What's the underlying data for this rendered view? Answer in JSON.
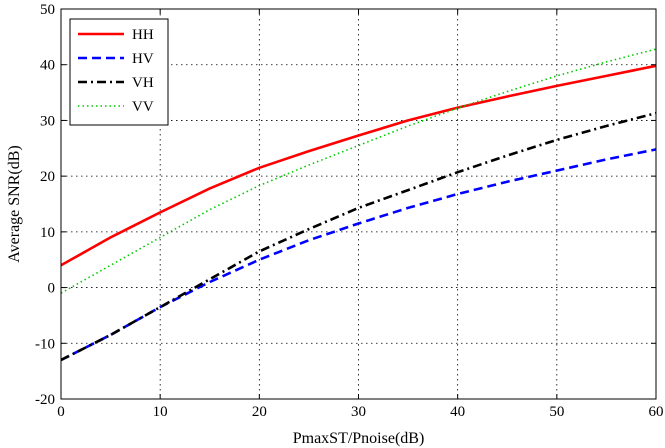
{
  "chart_data": {
    "type": "line",
    "title": "",
    "xlabel": "PmaxST/Pnoise(dB)",
    "ylabel": "Average SNR(dB)",
    "xlim": [
      0,
      60
    ],
    "ylim": [
      -20,
      50
    ],
    "xticks": [
      0,
      10,
      20,
      30,
      40,
      50,
      60
    ],
    "yticks": [
      -20,
      -10,
      0,
      10,
      20,
      30,
      40,
      50
    ],
    "grid": true,
    "legend_position": "top-left",
    "series": [
      {
        "name": "HH",
        "color": "#ff0000",
        "style": "solid",
        "x": [
          0,
          5,
          10,
          15,
          20,
          25,
          30,
          35,
          40,
          45,
          50,
          55,
          60
        ],
        "y": [
          4,
          9,
          13.5,
          17.8,
          21.5,
          24.5,
          27.3,
          30,
          32.3,
          34.3,
          36.2,
          38,
          39.8
        ]
      },
      {
        "name": "HV",
        "color": "#0000ff",
        "style": "dashed",
        "x": [
          0,
          5,
          10,
          15,
          20,
          25,
          30,
          35,
          40,
          45,
          50,
          55,
          60
        ],
        "y": [
          -13,
          -8.5,
          -3.5,
          1,
          5,
          8.5,
          11.5,
          14.3,
          16.8,
          19,
          21,
          23,
          24.8
        ]
      },
      {
        "name": "VH",
        "color": "#000000",
        "style": "dashdot",
        "x": [
          0,
          5,
          10,
          15,
          20,
          25,
          30,
          35,
          40,
          45,
          50,
          55,
          60
        ],
        "y": [
          -13,
          -8.5,
          -3.5,
          1.5,
          6.5,
          10.5,
          14.3,
          17.5,
          20.7,
          23.7,
          26.5,
          29,
          31.3
        ]
      },
      {
        "name": "VV",
        "color": "#00cc00",
        "style": "dotted",
        "x": [
          0,
          5,
          10,
          15,
          20,
          25,
          30,
          35,
          40,
          45,
          50,
          55,
          60
        ],
        "y": [
          -1,
          4,
          9,
          14,
          18.3,
          22,
          25.5,
          29,
          32.2,
          35.2,
          38,
          40.5,
          42.8
        ]
      }
    ]
  }
}
